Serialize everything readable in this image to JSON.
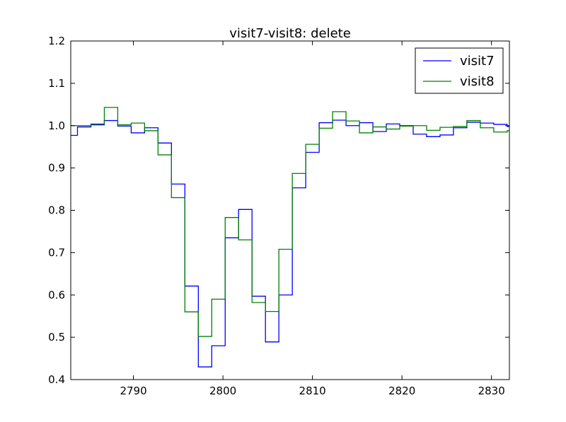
{
  "chart_data": {
    "type": "line",
    "step": true,
    "title": "visit7-visit8: delete",
    "xlabel": "",
    "ylabel": "",
    "xlim": [
      2783,
      2832
    ],
    "ylim": [
      0.4,
      1.2
    ],
    "xticks": [
      2790,
      2800,
      2810,
      2820,
      2830
    ],
    "xtick_labels": [
      "2790",
      "2800",
      "2810",
      "2820",
      "2830"
    ],
    "yticks": [
      0.4,
      0.5,
      0.6,
      0.7,
      0.8,
      0.9,
      1.0,
      1.1,
      1.2
    ],
    "ytick_labels": [
      "0.4",
      "0.5",
      "0.6",
      "0.7",
      "0.8",
      "0.9",
      "1.0",
      "1.1",
      "1.2"
    ],
    "grid": false,
    "legend_position": "top-right",
    "bin_edges": [
      2783,
      2783.75,
      2785.25,
      2786.75,
      2788.25,
      2789.75,
      2791.25,
      2792.75,
      2794.25,
      2795.75,
      2797.25,
      2798.75,
      2800.25,
      2801.75,
      2803.25,
      2804.75,
      2806.25,
      2807.75,
      2809.25,
      2810.75,
      2812.25,
      2813.75,
      2815.25,
      2816.75,
      2818.25,
      2819.75,
      2821.25,
      2822.75,
      2824.25,
      2825.75,
      2827.25,
      2828.75,
      2830.25,
      2831.75,
      2832
    ],
    "series": [
      {
        "name": "visit7",
        "color": "#0000ff",
        "values": [
          0.977,
          0.997,
          1.002,
          1.012,
          0.999,
          0.983,
          0.995,
          0.959,
          0.862,
          0.621,
          0.43,
          0.48,
          0.735,
          0.802,
          0.597,
          0.489,
          0.6,
          0.853,
          0.937,
          1.007,
          1.013,
          1.0,
          1.007,
          0.986,
          1.004,
          1.0,
          0.98,
          0.974,
          0.978,
          0.995,
          1.008,
          1.006,
          1.003,
          0.998
        ]
      },
      {
        "name": "visit8",
        "color": "#008000",
        "values": [
          1.0,
          1.0,
          1.004,
          1.043,
          1.002,
          1.006,
          0.988,
          0.931,
          0.83,
          0.56,
          0.502,
          0.59,
          0.783,
          0.73,
          0.582,
          0.561,
          0.708,
          0.887,
          0.956,
          0.994,
          1.033,
          1.011,
          0.983,
          0.997,
          0.992,
          0.999,
          1.0,
          0.989,
          0.996,
          0.998,
          1.012,
          0.995,
          0.985,
          0.988
        ]
      }
    ]
  }
}
